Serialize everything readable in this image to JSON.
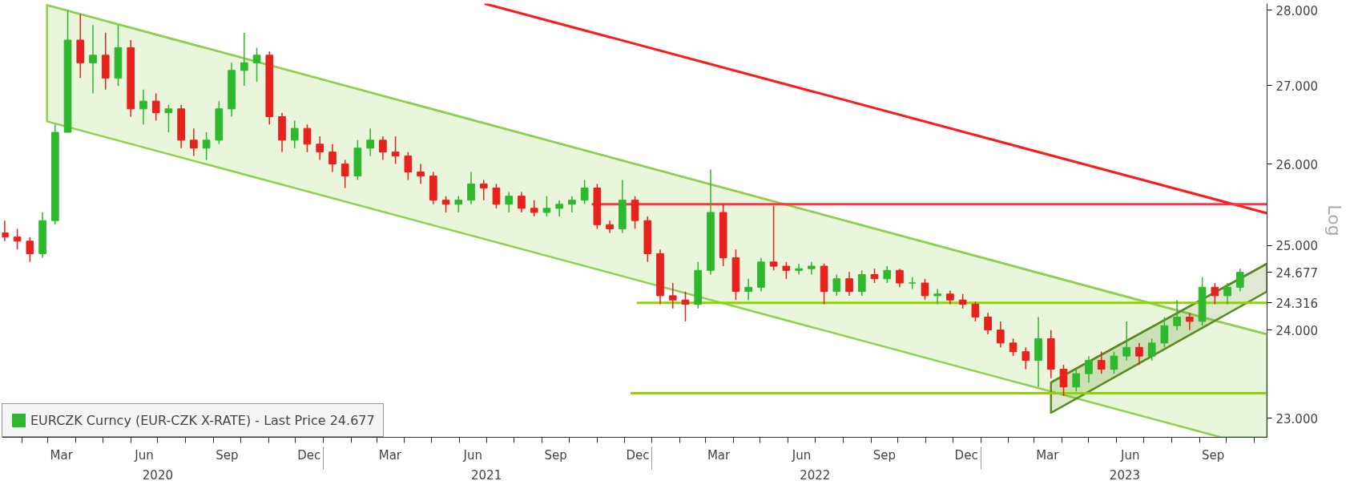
{
  "chart_data": {
    "type": "candlestick",
    "log": "y",
    "ylabel": "Log",
    "legend": "bottom left",
    "xlim": [
      "2020-01-10",
      "2023-11-15"
    ],
    "ylim": [
      22.79,
      28.09
    ],
    "yticks": [
      {
        "value": 23,
        "label": "23.000"
      },
      {
        "value": 24,
        "label": "24.000"
      },
      {
        "value": 24.316,
        "label": "24.316"
      },
      {
        "value": 24.677,
        "label": "24.677"
      },
      {
        "value": 25,
        "label": "25.000"
      },
      {
        "value": 26,
        "label": "26.000"
      },
      {
        "value": 27,
        "label": "27.000"
      },
      {
        "value": 28,
        "label": "28.000"
      }
    ],
    "xticks": [
      {
        "value": "2020-03-16",
        "label": "Mar"
      },
      {
        "value": "2020-06-16",
        "label": "Jun"
      },
      {
        "value": "2020-09-16",
        "label": "Sep"
      },
      {
        "value": "2020-12-16",
        "label": "Dec"
      },
      {
        "value": "2021-03-16",
        "label": "Mar"
      },
      {
        "value": "2021-06-16",
        "label": "Jun"
      },
      {
        "value": "2021-09-16",
        "label": "Sep"
      },
      {
        "value": "2021-12-16",
        "label": "Dec"
      },
      {
        "value": "2022-03-16",
        "label": "Mar"
      },
      {
        "value": "2022-06-16",
        "label": "Jun"
      },
      {
        "value": "2022-09-16",
        "label": "Sep"
      },
      {
        "value": "2022-12-16",
        "label": "Dec"
      },
      {
        "value": "2023-03-16",
        "label": "Mar"
      },
      {
        "value": "2023-06-16",
        "label": "Jun"
      },
      {
        "value": "2023-09-16",
        "label": "Sep"
      },
      {
        "value": "2020-02-01",
        "label": null
      },
      {
        "value": "2020-03-01",
        "label": null
      },
      {
        "value": "2020-04-01",
        "label": null
      },
      {
        "value": "2020-05-01",
        "label": null
      },
      {
        "value": "2020-06-01",
        "label": null
      },
      {
        "value": "2020-07-01",
        "label": null
      },
      {
        "value": "2020-08-01",
        "label": null
      },
      {
        "value": "2020-09-01",
        "label": null
      },
      {
        "value": "2020-10-01",
        "label": null
      },
      {
        "value": "2020-11-01",
        "label": null
      },
      {
        "value": "2020-12-01",
        "label": null
      },
      {
        "value": "2021-01-01",
        "label": null
      },
      {
        "value": "2021-02-01",
        "label": null
      },
      {
        "value": "2021-03-01",
        "label": null
      },
      {
        "value": "2021-04-01",
        "label": null
      },
      {
        "value": "2021-05-01",
        "label": null
      },
      {
        "value": "2021-06-01",
        "label": null
      },
      {
        "value": "2021-07-01",
        "label": null
      },
      {
        "value": "2021-08-01",
        "label": null
      },
      {
        "value": "2021-09-01",
        "label": null
      },
      {
        "value": "2021-10-01",
        "label": null
      },
      {
        "value": "2021-11-01",
        "label": null
      },
      {
        "value": "2021-12-01",
        "label": null
      },
      {
        "value": "2022-01-01",
        "label": null
      },
      {
        "value": "2022-02-01",
        "label": null
      },
      {
        "value": "2022-03-01",
        "label": null
      },
      {
        "value": "2022-04-01",
        "label": null
      },
      {
        "value": "2022-05-01",
        "label": null
      },
      {
        "value": "2022-06-01",
        "label": null
      },
      {
        "value": "2022-07-01",
        "label": null
      },
      {
        "value": "2022-08-01",
        "label": null
      },
      {
        "value": "2022-09-01",
        "label": null
      },
      {
        "value": "2022-10-01",
        "label": null
      },
      {
        "value": "2022-11-01",
        "label": null
      },
      {
        "value": "2022-12-01",
        "label": null
      },
      {
        "value": "2023-01-01",
        "label": null
      },
      {
        "value": "2023-02-01",
        "label": null
      },
      {
        "value": "2023-03-01",
        "label": null
      },
      {
        "value": "2023-04-01",
        "label": null
      },
      {
        "value": "2023-05-01",
        "label": null
      },
      {
        "value": "2023-06-01",
        "label": null
      },
      {
        "value": "2023-07-01",
        "label": null
      },
      {
        "value": "2023-08-01",
        "label": null
      },
      {
        "value": "2023-09-01",
        "label": null
      },
      {
        "value": "2023-10-01",
        "label": null
      },
      {
        "value": "2023-11-01",
        "label": null
      }
    ],
    "x2lim": [
      "2020-01-10",
      "2023-11-15"
    ],
    "x2ticks": [
      {
        "value": "2020-07-01",
        "label": "2020"
      },
      {
        "value": "2021-07-01",
        "label": "2021"
      },
      {
        "value": "2022-07-01",
        "label": "2022"
      },
      {
        "value": "2023-06-10",
        "label": "2023"
      },
      {
        "value": "2021-01-01",
        "label": null
      },
      {
        "value": "2022-01-01",
        "label": null
      },
      {
        "value": "2023-01-01",
        "label": null
      }
    ],
    "series": [
      {
        "type": "line",
        "color": "#8fd14f",
        "x": [
          "2020-02-29",
          "2023-09-25",
          "2023-11-15"
        ],
        "values": [
          28.07,
          24.09,
          23.95
        ],
        "upper": [
          28.07,
          24.09,
          23.95
        ],
        "lower": [
          26.54,
          22.79,
          22.79
        ]
      },
      {
        "type": "line",
        "color": "#5b8c1e",
        "x": [
          "2023-03-20",
          "2023-11-15"
        ],
        "values": [
          23.4,
          24.78
        ],
        "upper": [
          23.4,
          24.78
        ],
        "lower": [
          23.06,
          24.45
        ]
      },
      {
        "type": "line",
        "color": "#ff1a1a",
        "x": [
          "2021-06-29",
          "2023-11-15"
        ],
        "values": [
          28.09,
          25.39
        ]
      },
      {
        "type": "line",
        "color": "#ff3344",
        "x": [
          "2021-10-26",
          "2023-11-15"
        ],
        "values": [
          25.5,
          25.5
        ]
      },
      {
        "type": "line",
        "color": "#8fd400",
        "x": [
          "2021-12-15",
          "2023-11-15"
        ],
        "values": [
          24.316,
          24.316
        ]
      },
      {
        "type": "line",
        "color": "#8fd400",
        "x": [
          "2021-12-08",
          "2023-11-15"
        ],
        "values": [
          23.28,
          23.28
        ]
      },
      {
        "name": "EURCZK Curncy (EUR-CZK X-RATE) - Last Price 24.677",
        "colors": [
          "#e8211d",
          "#e8211d",
          "#e8211d",
          "#2eb82e",
          "#2eb82e",
          "#2eb82e",
          "#e8211d",
          "#2eb82e",
          "#e8211d",
          "#2eb82e",
          "#e8211d",
          "#2eb82e",
          "#e8211d",
          "#2eb82e",
          "#e8211d",
          "#e8211d",
          "#2eb82e",
          "#2eb82e",
          "#2eb82e",
          "#2eb82e",
          "#2eb82e",
          "#e8211d",
          "#e8211d",
          "#2eb82e",
          "#e8211d",
          "#e8211d",
          "#e8211d",
          "#e8211d",
          "#2eb82e",
          "#2eb82e",
          "#e8211d",
          "#e8211d",
          "#e8211d",
          "#e8211d",
          "#e8211d",
          "#e8211d",
          "#2eb82e",
          "#2eb82e",
          "#e8211d",
          "#e8211d",
          "#2eb82e",
          "#e8211d",
          "#e8211d",
          "#2eb82e",
          "#2eb82e",
          "#2eb82e",
          "#2eb82e",
          "#e8211d",
          "#e8211d",
          "#2eb82e",
          "#e8211d",
          "#e8211d",
          "#e8211d",
          "#e8211d",
          "#e8211d",
          "#2eb82e",
          "#2eb82e",
          "#e8211d",
          "#e8211d",
          "#2eb82e",
          "#2eb82e",
          "#e8211d",
          "#e8211d",
          "#2eb82e",
          "#2eb82e",
          "#e8211d",
          "#2eb82e",
          "#e8211d",
          "#2eb82e",
          "#e8211d",
          "#2eb82e",
          "#e8211d",
          "#2eb82e",
          "#e8211d",
          "#2eb82e",
          "#e8211d",
          "#e8211d",
          "#e8211d",
          "#e8211d",
          "#e8211d",
          "#e8211d",
          "#e8211d",
          "#2eb82e",
          "#e8211d",
          "#e8211d",
          "#2eb82e",
          "#2eb82e",
          "#e8211d",
          "#2eb82e",
          "#2eb82e",
          "#e8211d",
          "#2eb82e",
          "#2eb82e",
          "#2eb82e",
          "#e8211d",
          "#2eb82e",
          "#e8211d",
          "#2eb82e",
          "#2eb82e"
        ],
        "x": [
          "2020-01-13",
          "2020-01-27",
          "2020-02-10",
          "2020-02-24",
          "2020-03-09",
          "2020-03-23",
          "2020-04-06",
          "2020-04-20",
          "2020-05-04",
          "2020-05-18",
          "2020-06-01",
          "2020-06-15",
          "2020-06-29",
          "2020-07-13",
          "2020-07-27",
          "2020-08-10",
          "2020-08-24",
          "2020-09-07",
          "2020-09-21",
          "2020-10-05",
          "2020-10-19",
          "2020-11-02",
          "2020-11-16",
          "2020-11-30",
          "2020-12-14",
          "2020-12-28",
          "2021-01-11",
          "2021-01-25",
          "2021-02-08",
          "2021-02-22",
          "2021-03-08",
          "2021-03-22",
          "2021-04-05",
          "2021-04-19",
          "2021-05-03",
          "2021-05-17",
          "2021-05-31",
          "2021-06-14",
          "2021-06-28",
          "2021-07-12",
          "2021-07-26",
          "2021-08-09",
          "2021-08-23",
          "2021-09-06",
          "2021-09-20",
          "2021-10-04",
          "2021-10-18",
          "2021-11-01",
          "2021-11-15",
          "2021-11-29",
          "2021-12-13",
          "2021-12-27",
          "2022-01-10",
          "2022-01-24",
          "2022-02-07",
          "2022-02-21",
          "2022-03-07",
          "2022-03-21",
          "2022-04-04",
          "2022-04-18",
          "2022-05-02",
          "2022-05-16",
          "2022-05-30",
          "2022-06-13",
          "2022-06-27",
          "2022-07-11",
          "2022-07-25",
          "2022-08-08",
          "2022-08-22",
          "2022-09-05",
          "2022-09-19",
          "2022-10-03",
          "2022-10-17",
          "2022-10-31",
          "2022-11-14",
          "2022-11-28",
          "2022-12-12",
          "2022-12-26",
          "2023-01-09",
          "2023-01-23",
          "2023-02-06",
          "2023-02-20",
          "2023-03-06",
          "2023-03-20",
          "2023-04-03",
          "2023-04-17",
          "2023-05-01",
          "2023-05-15",
          "2023-05-29",
          "2023-06-12",
          "2023-06-26",
          "2023-07-10",
          "2023-07-24",
          "2023-08-07",
          "2023-08-21",
          "2023-09-04",
          "2023-09-18",
          "2023-10-02",
          "2023-10-16"
        ],
        "ohlc": [
          [
            25.15,
            25.3,
            25.05,
            25.1
          ],
          [
            25.1,
            25.2,
            24.95,
            25.05
          ],
          [
            25.05,
            25.1,
            24.8,
            24.9
          ],
          [
            24.9,
            25.4,
            24.85,
            25.3
          ],
          [
            25.3,
            26.5,
            25.25,
            26.4
          ],
          [
            26.4,
            28.0,
            26.4,
            27.6
          ],
          [
            27.6,
            27.95,
            27.1,
            27.3
          ],
          [
            27.3,
            27.8,
            26.9,
            27.4
          ],
          [
            27.4,
            27.7,
            26.95,
            27.1
          ],
          [
            27.1,
            27.8,
            27.0,
            27.5
          ],
          [
            27.5,
            27.6,
            26.6,
            26.7
          ],
          [
            26.7,
            26.95,
            26.5,
            26.8
          ],
          [
            26.8,
            26.9,
            26.55,
            26.65
          ],
          [
            26.65,
            26.75,
            26.4,
            26.7
          ],
          [
            26.7,
            26.75,
            26.2,
            26.3
          ],
          [
            26.3,
            26.45,
            26.1,
            26.2
          ],
          [
            26.2,
            26.4,
            26.05,
            26.3
          ],
          [
            26.3,
            26.8,
            26.25,
            26.7
          ],
          [
            26.7,
            27.3,
            26.6,
            27.2
          ],
          [
            27.2,
            27.7,
            27.0,
            27.3
          ],
          [
            27.3,
            27.5,
            27.05,
            27.4
          ],
          [
            27.4,
            27.45,
            26.5,
            26.6
          ],
          [
            26.6,
            26.65,
            26.15,
            26.3
          ],
          [
            26.3,
            26.55,
            26.2,
            26.45
          ],
          [
            26.45,
            26.5,
            26.15,
            26.25
          ],
          [
            26.25,
            26.35,
            26.05,
            26.15
          ],
          [
            26.15,
            26.25,
            25.9,
            26.0
          ],
          [
            26.0,
            26.05,
            25.7,
            25.85
          ],
          [
            25.85,
            26.3,
            25.8,
            26.2
          ],
          [
            26.2,
            26.45,
            26.1,
            26.3
          ],
          [
            26.3,
            26.35,
            26.05,
            26.15
          ],
          [
            26.15,
            26.35,
            26.0,
            26.1
          ],
          [
            26.1,
            26.15,
            25.8,
            25.9
          ],
          [
            25.9,
            26.0,
            25.75,
            25.85
          ],
          [
            25.85,
            25.9,
            25.5,
            25.55
          ],
          [
            25.55,
            25.6,
            25.4,
            25.5
          ],
          [
            25.5,
            25.6,
            25.4,
            25.55
          ],
          [
            25.55,
            25.9,
            25.5,
            25.75
          ],
          [
            25.75,
            25.8,
            25.55,
            25.7
          ],
          [
            25.7,
            25.75,
            25.45,
            25.5
          ],
          [
            25.5,
            25.65,
            25.4,
            25.6
          ],
          [
            25.6,
            25.65,
            25.4,
            25.45
          ],
          [
            25.45,
            25.55,
            25.35,
            25.4
          ],
          [
            25.4,
            25.6,
            25.35,
            25.45
          ],
          [
            25.45,
            25.55,
            25.35,
            25.5
          ],
          [
            25.5,
            25.6,
            25.4,
            25.55
          ],
          [
            25.55,
            25.8,
            25.5,
            25.7
          ],
          [
            25.7,
            25.75,
            25.2,
            25.25
          ],
          [
            25.25,
            25.3,
            25.15,
            25.2
          ],
          [
            25.2,
            25.8,
            25.15,
            25.55
          ],
          [
            25.55,
            25.6,
            25.2,
            25.3
          ],
          [
            25.3,
            25.35,
            24.8,
            24.9
          ],
          [
            24.9,
            24.95,
            24.3,
            24.4
          ],
          [
            24.4,
            24.55,
            24.25,
            24.35
          ],
          [
            24.35,
            24.45,
            24.1,
            24.3
          ],
          [
            24.3,
            24.8,
            24.25,
            24.7
          ],
          [
            24.7,
            25.93,
            24.65,
            25.4
          ],
          [
            25.4,
            25.5,
            24.75,
            24.85
          ],
          [
            24.85,
            24.95,
            24.35,
            24.45
          ],
          [
            24.45,
            24.6,
            24.35,
            24.5
          ],
          [
            24.5,
            24.85,
            24.45,
            24.8
          ],
          [
            24.8,
            25.48,
            24.7,
            24.75
          ],
          [
            24.75,
            24.8,
            24.6,
            24.7
          ],
          [
            24.7,
            24.78,
            24.65,
            24.72
          ],
          [
            24.72,
            24.8,
            24.65,
            24.75
          ],
          [
            24.75,
            24.78,
            24.3,
            24.45
          ],
          [
            24.45,
            24.65,
            24.4,
            24.6
          ],
          [
            24.6,
            24.68,
            24.4,
            24.45
          ],
          [
            24.45,
            24.7,
            24.4,
            24.65
          ],
          [
            24.65,
            24.72,
            24.55,
            24.6
          ],
          [
            24.6,
            24.75,
            24.55,
            24.7
          ],
          [
            24.7,
            24.72,
            24.5,
            24.55
          ],
          [
            24.55,
            24.62,
            24.48,
            24.55
          ],
          [
            24.55,
            24.6,
            24.35,
            24.4
          ],
          [
            24.4,
            24.48,
            24.3,
            24.42
          ],
          [
            24.42,
            24.46,
            24.3,
            24.35
          ],
          [
            24.35,
            24.42,
            24.25,
            24.3
          ],
          [
            24.3,
            24.33,
            24.1,
            24.15
          ],
          [
            24.15,
            24.2,
            23.95,
            24.0
          ],
          [
            24.0,
            24.1,
            23.8,
            23.85
          ],
          [
            23.85,
            23.9,
            23.7,
            23.75
          ],
          [
            23.75,
            23.8,
            23.55,
            23.65
          ],
          [
            23.65,
            24.15,
            23.35,
            23.9
          ],
          [
            23.9,
            24.0,
            23.45,
            23.55
          ],
          [
            23.55,
            23.6,
            23.25,
            23.35
          ],
          [
            23.35,
            23.55,
            23.3,
            23.5
          ],
          [
            23.5,
            23.7,
            23.4,
            23.65
          ],
          [
            23.65,
            23.75,
            23.5,
            23.55
          ],
          [
            23.55,
            23.75,
            23.5,
            23.7
          ],
          [
            23.7,
            24.1,
            23.65,
            23.8
          ],
          [
            23.8,
            23.85,
            23.6,
            23.7
          ],
          [
            23.7,
            23.9,
            23.65,
            23.85
          ],
          [
            23.85,
            24.15,
            23.8,
            24.05
          ],
          [
            24.05,
            24.35,
            24.0,
            24.15
          ],
          [
            24.15,
            24.2,
            24.0,
            24.1
          ],
          [
            24.1,
            24.62,
            24.05,
            24.5
          ],
          [
            24.5,
            24.55,
            24.3,
            24.4
          ],
          [
            24.4,
            24.55,
            24.3,
            24.5
          ],
          [
            24.5,
            24.72,
            24.45,
            24.677
          ]
        ]
      }
    ]
  }
}
